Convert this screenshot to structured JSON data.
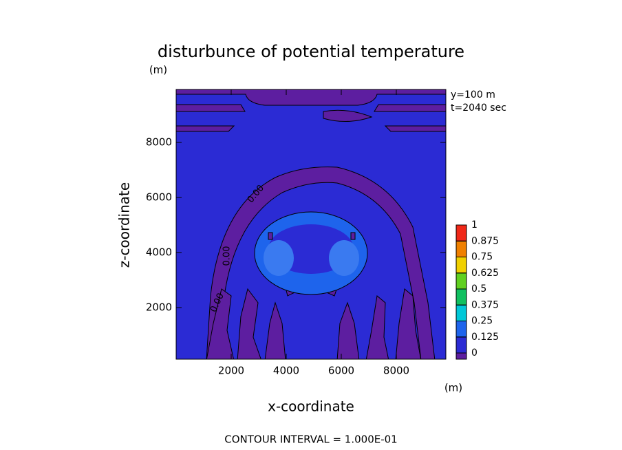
{
  "chart_data": {
    "type": "contour",
    "title": "disturbunce of potential temperature",
    "y_unit": "(m)",
    "x_unit": "(m)",
    "x_label": "x-coordinate",
    "y_label": "z-coordinate",
    "xlim": [
      0,
      9800
    ],
    "ylim": [
      125,
      9925
    ],
    "xticks": [
      2000,
      4000,
      6000,
      8000
    ],
    "yticks": [
      2000,
      4000,
      6000,
      8000
    ],
    "annotations": [
      "y=100 m",
      "t=2040 sec"
    ],
    "footer": "CONTOUR INTERVAL = 1.000E-01",
    "contour_labels": [
      "0.00",
      "0.00",
      "0.00"
    ],
    "colorbar": {
      "levels": [
        0,
        0.125,
        0.25,
        0.375,
        0.5,
        0.625,
        0.75,
        0.875,
        1
      ],
      "under_color": "#5d1ea0",
      "colors": [
        "#2b2bd4",
        "#1e64ec",
        "#00c8d8",
        "#10c060",
        "#60d020",
        "#f0d000",
        "#f08000",
        "#f02818"
      ]
    }
  }
}
